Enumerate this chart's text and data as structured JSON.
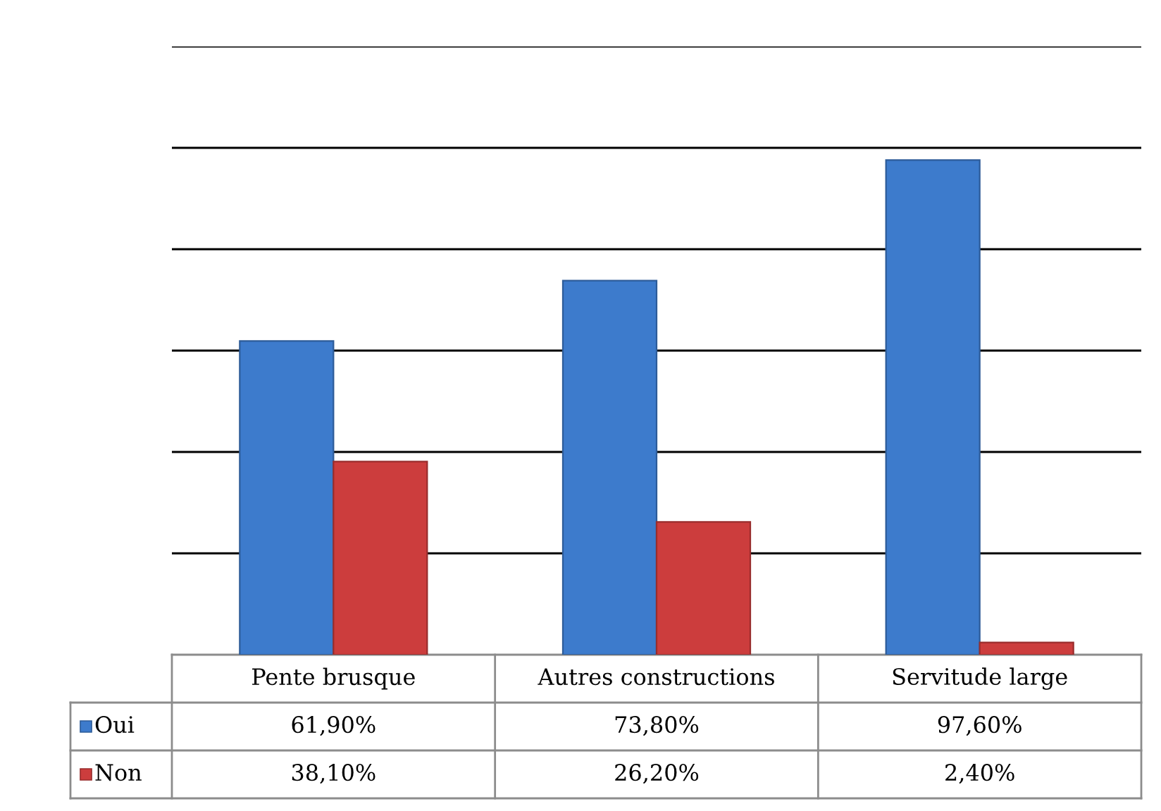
{
  "chart_data": {
    "type": "bar",
    "categories": [
      "Pente brusque",
      "Autres constructions",
      "Servitude large"
    ],
    "series": [
      {
        "name": "Oui",
        "color": "#3d7bcc",
        "values": [
          61.9,
          73.8,
          97.6
        ],
        "value_labels": [
          "61,90%",
          "73,80%",
          "97,60%"
        ]
      },
      {
        "name": "Non",
        "color": "#cc3d3d",
        "values": [
          38.1,
          26.2,
          2.4
        ],
        "value_labels": [
          "38,10%",
          "26,20%",
          "2,40%"
        ]
      }
    ],
    "ylim": [
      0,
      120
    ],
    "yticks": [
      {
        "value": 20,
        "label": null
      },
      {
        "value": 40,
        "label": null
      },
      {
        "value": 60,
        "label": null
      },
      {
        "value": 80,
        "label": null
      },
      {
        "value": 100,
        "label": null
      },
      {
        "value": 120,
        "label": null
      }
    ],
    "grid": "y",
    "legend": "bottom left",
    "tick_labels": "x"
  }
}
